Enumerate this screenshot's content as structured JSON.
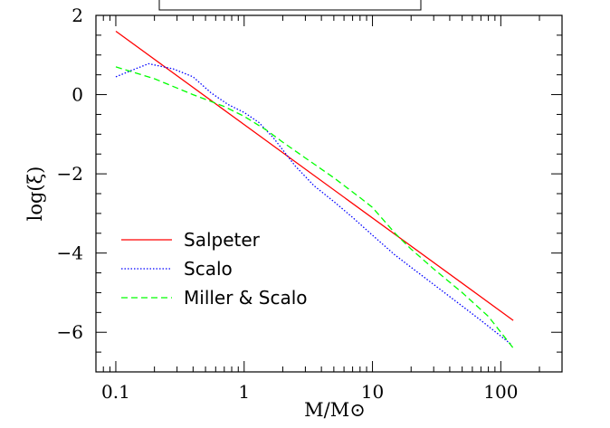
{
  "chart_data": {
    "type": "line",
    "xlabel": "M/M⊙",
    "ylabel": "log(ξ)",
    "xscale": "log",
    "xlim": [
      0.07,
      300
    ],
    "ylim": [
      -7,
      2
    ],
    "xticks": [
      {
        "value": 0.1,
        "label": "0.1"
      },
      {
        "value": 1,
        "label": "1"
      },
      {
        "value": 10,
        "label": "10"
      },
      {
        "value": 100,
        "label": "100"
      }
    ],
    "yticks": [
      {
        "value": 2,
        "label": "2"
      },
      {
        "value": 0,
        "label": "0"
      },
      {
        "value": -2,
        "label": "−2"
      },
      {
        "value": -4,
        "label": "−4"
      },
      {
        "value": -6,
        "label": "−6"
      }
    ],
    "legend_position": "lower-left",
    "series": [
      {
        "name": "Salpeter",
        "color": "#ff0000",
        "dash": "solid",
        "x": [
          0.1,
          125
        ],
        "y": [
          1.6,
          -5.7
        ]
      },
      {
        "name": "Scalo",
        "color": "#0000ff",
        "dash": "dotted",
        "x": [
          0.1,
          0.13,
          0.18,
          0.22,
          0.28,
          0.4,
          0.55,
          0.75,
          1.0,
          1.3,
          1.7,
          2.5,
          3.5,
          5,
          7,
          10,
          15,
          25,
          40,
          70,
          120
        ],
        "y": [
          0.45,
          0.6,
          0.78,
          0.72,
          0.65,
          0.45,
          0.05,
          -0.25,
          -0.45,
          -0.7,
          -1.1,
          -1.8,
          -2.3,
          -2.7,
          -3.1,
          -3.55,
          -4.05,
          -4.6,
          -5.1,
          -5.7,
          -6.3
        ]
      },
      {
        "name": "Miller & Scalo",
        "color": "#00ff00",
        "dash": "dashed",
        "x": [
          0.1,
          0.2,
          0.4,
          0.7,
          1.0,
          1.5,
          2.0,
          3.0,
          5,
          8,
          10,
          15,
          20,
          30,
          50,
          80,
          125
        ],
        "y": [
          0.7,
          0.4,
          0.0,
          -0.3,
          -0.55,
          -0.9,
          -1.2,
          -1.6,
          -2.1,
          -2.6,
          -2.85,
          -3.5,
          -3.9,
          -4.4,
          -5.0,
          -5.6,
          -6.4
        ]
      }
    ]
  }
}
